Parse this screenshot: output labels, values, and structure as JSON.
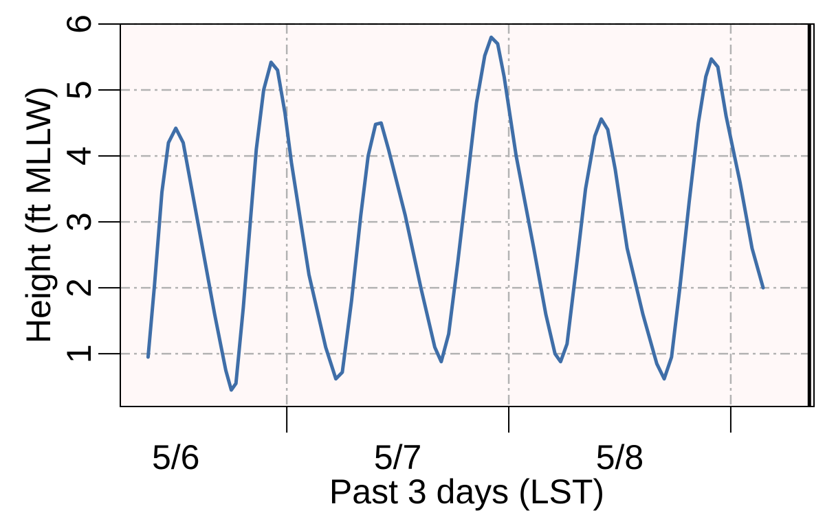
{
  "chart_data": {
    "type": "line",
    "xlabel": "Past 3 days (LST)",
    "ylabel": "Height (ft MLLW)",
    "x_unit": "hours since 5/6 00:00 LST",
    "x_ticks": [
      0,
      24,
      48
    ],
    "x_tick_labels": [
      "5/6",
      "5/7",
      "5/8"
    ],
    "x_major_ticks": [
      12,
      36,
      60
    ],
    "xlim": [
      -6,
      69
    ],
    "ylim": [
      0.2,
      6.0
    ],
    "y_ticks": [
      1,
      2,
      3,
      4,
      5,
      6
    ],
    "grid": true,
    "current_time_marker": 68.5,
    "colors": {
      "series": "#3f6ea8",
      "plot_background": "#fff8f8",
      "grid": "#b3b3b3",
      "marker": "#000000"
    },
    "series": [
      {
        "values": [
          [
            -3.0,
            0.95
          ],
          [
            -2.3,
            2.05
          ],
          [
            -1.5,
            3.45
          ],
          [
            -0.8,
            4.2
          ],
          [
            0.0,
            4.42
          ],
          [
            0.8,
            4.2
          ],
          [
            2.5,
            2.9
          ],
          [
            4.2,
            1.6
          ],
          [
            5.4,
            0.75
          ],
          [
            6.0,
            0.45
          ],
          [
            6.5,
            0.55
          ],
          [
            7.3,
            1.7
          ],
          [
            8.0,
            2.9
          ],
          [
            8.7,
            4.1
          ],
          [
            9.5,
            5.0
          ],
          [
            10.3,
            5.42
          ],
          [
            11.0,
            5.3
          ],
          [
            11.8,
            4.65
          ],
          [
            12.5,
            3.9
          ],
          [
            14.4,
            2.2
          ],
          [
            16.2,
            1.1
          ],
          [
            17.3,
            0.62
          ],
          [
            18.0,
            0.72
          ],
          [
            19.0,
            1.8
          ],
          [
            20.0,
            3.1
          ],
          [
            20.8,
            4.0
          ],
          [
            21.6,
            4.48
          ],
          [
            22.2,
            4.5
          ],
          [
            23.0,
            4.1
          ],
          [
            24.8,
            3.1
          ],
          [
            26.5,
            2.0
          ],
          [
            28.0,
            1.1
          ],
          [
            28.7,
            0.88
          ],
          [
            29.5,
            1.3
          ],
          [
            30.5,
            2.4
          ],
          [
            31.5,
            3.6
          ],
          [
            32.5,
            4.8
          ],
          [
            33.4,
            5.52
          ],
          [
            34.1,
            5.8
          ],
          [
            34.8,
            5.7
          ],
          [
            35.5,
            5.2
          ],
          [
            36.8,
            4.0
          ],
          [
            38.7,
            2.6
          ],
          [
            40.0,
            1.6
          ],
          [
            41.0,
            1.0
          ],
          [
            41.6,
            0.88
          ],
          [
            42.3,
            1.15
          ],
          [
            43.3,
            2.3
          ],
          [
            44.3,
            3.5
          ],
          [
            45.3,
            4.3
          ],
          [
            46.0,
            4.56
          ],
          [
            46.7,
            4.4
          ],
          [
            47.5,
            3.8
          ],
          [
            48.8,
            2.6
          ],
          [
            50.5,
            1.6
          ],
          [
            52.0,
            0.85
          ],
          [
            52.8,
            0.62
          ],
          [
            53.6,
            0.95
          ],
          [
            54.5,
            2.0
          ],
          [
            55.5,
            3.3
          ],
          [
            56.5,
            4.5
          ],
          [
            57.3,
            5.2
          ],
          [
            57.9,
            5.47
          ],
          [
            58.6,
            5.35
          ],
          [
            59.5,
            4.6
          ],
          [
            61.0,
            3.6
          ],
          [
            62.3,
            2.6
          ],
          [
            63.5,
            2.0
          ]
        ]
      }
    ]
  }
}
